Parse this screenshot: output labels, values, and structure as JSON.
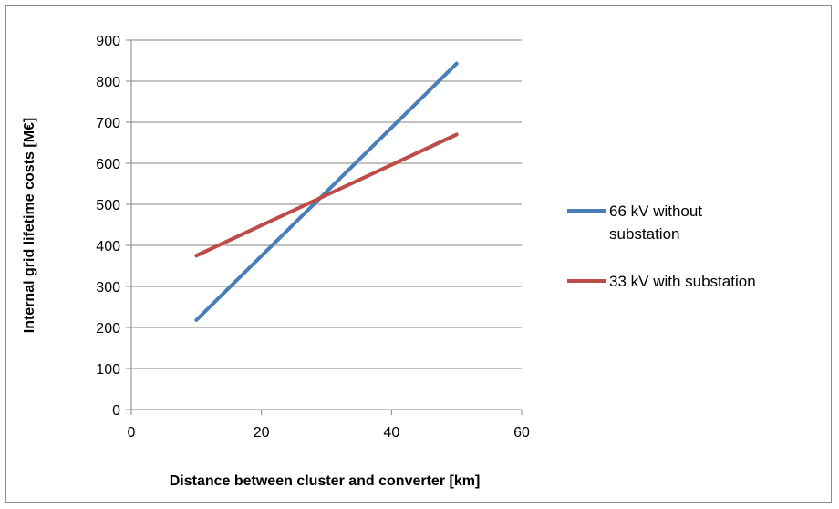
{
  "chart_data": {
    "type": "line",
    "xlabel": "Distance between cluster and converter [km]",
    "ylabel": "Internal grid lifetime costs [M€]",
    "xlim": [
      0,
      60
    ],
    "ylim": [
      0,
      900
    ],
    "xticks": [
      0,
      20,
      40,
      60
    ],
    "yticks": [
      0,
      100,
      200,
      300,
      400,
      500,
      600,
      700,
      800,
      900
    ],
    "grid": "horizontal",
    "legend_position": "right",
    "series": [
      {
        "name": "66 kV without substation",
        "legend_lines": [
          "66 kV without",
          "substation"
        ],
        "color": "#4a7ebb",
        "x": [
          10,
          50
        ],
        "y": [
          218,
          843
        ]
      },
      {
        "name": "33 kV with substation",
        "legend_lines": [
          "33 kV with substation"
        ],
        "color": "#be4b48",
        "x": [
          10,
          50
        ],
        "y": [
          375,
          670
        ]
      }
    ]
  }
}
